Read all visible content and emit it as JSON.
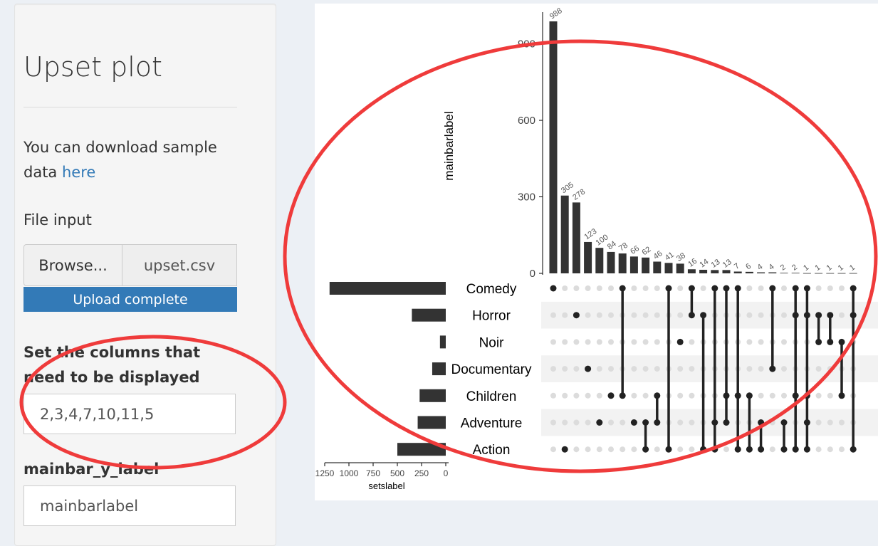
{
  "sidebar": {
    "title": "Upset plot",
    "description_prefix": "You can download sample data",
    "description_link": "here",
    "file_input_label": "File input",
    "browse_label": "Browse...",
    "file_name": "upset.csv",
    "upload_status": "Upload complete",
    "columns_label": "Set the columns that need to be displayed",
    "columns_value": "2,3,4,7,10,11,5",
    "mainbar_label": "mainbar_y_label",
    "mainbar_value": "mainbarlabel"
  },
  "annotation_color": "#ef3b3b",
  "chart_data": {
    "type": "bar",
    "ylabel": "mainbarlabel",
    "xlabel": "setslabel",
    "yticks": [
      0,
      300,
      600,
      900
    ],
    "set_ticks": [
      1250,
      1000,
      750,
      500,
      250,
      0
    ],
    "sets": [
      "Comedy",
      "Horror",
      "Noir",
      "Documentary",
      "Children",
      "Adventure",
      "Action"
    ],
    "set_sizes": [
      1200,
      350,
      60,
      140,
      270,
      290,
      500
    ],
    "values": [
      988,
      305,
      278,
      123,
      100,
      84,
      78,
      66,
      62,
      46,
      41,
      38,
      16,
      14,
      13,
      13,
      7,
      6,
      4,
      4,
      2,
      2,
      1,
      1,
      1,
      1,
      1
    ],
    "value_labels": [
      "988",
      "305",
      "278",
      "123",
      "100",
      "84",
      "78",
      "66",
      "62",
      "46",
      "41",
      "38",
      "16",
      "14",
      "13",
      "13",
      "7",
      "6",
      "4",
      "4",
      "2",
      "2",
      "1",
      "1",
      "1",
      "1",
      "1"
    ],
    "matrix": [
      [
        0
      ],
      [
        6
      ],
      [
        1
      ],
      [
        3
      ],
      [
        5
      ],
      [
        4
      ],
      [
        0,
        4
      ],
      [
        5
      ],
      [
        5,
        6
      ],
      [
        4,
        5
      ],
      [
        0,
        6
      ],
      [
        2
      ],
      [
        0,
        1
      ],
      [
        1,
        6
      ],
      [
        0,
        5,
        6
      ],
      [
        0,
        4,
        5
      ],
      [
        0,
        4,
        6
      ],
      [
        4,
        6
      ],
      [
        5,
        6
      ],
      [
        0,
        3
      ],
      [
        5,
        6
      ],
      [
        0,
        1,
        4,
        6
      ],
      [
        0,
        1,
        4,
        5,
        6
      ],
      [
        1,
        2
      ],
      [
        1,
        2
      ],
      [
        2,
        4
      ],
      [
        0,
        1,
        6
      ]
    ]
  }
}
